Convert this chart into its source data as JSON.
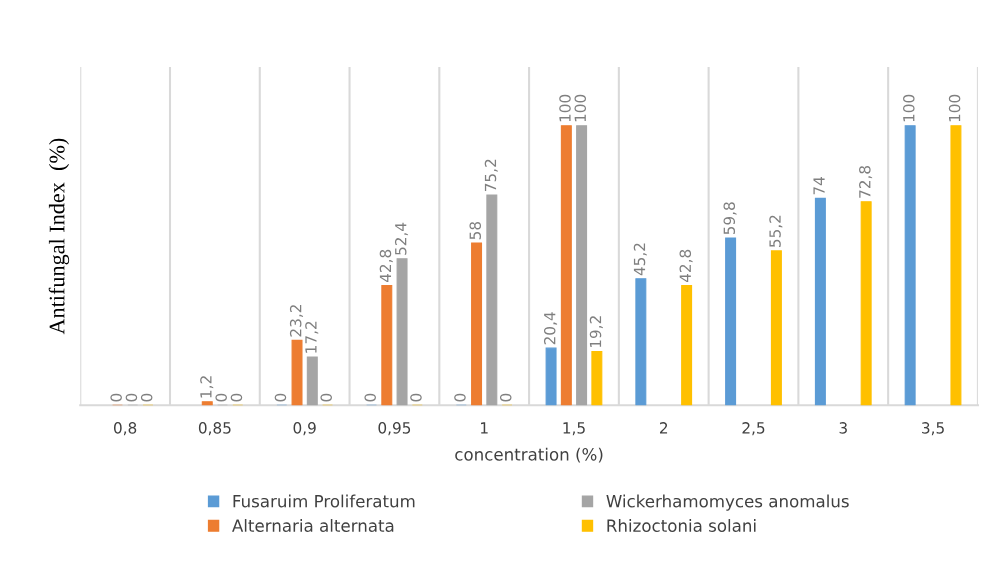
{
  "chart_data": {
    "type": "bar",
    "xlabel": "concentration (%)",
    "ylabel": "Antifungal Index  (%)",
    "categories": [
      "0,8",
      "0,85",
      "0,9",
      "0,95",
      "1",
      "1,5",
      "2",
      "2,5",
      "3",
      "3,5"
    ],
    "series": [
      {
        "name": "Fusaruim Proliferatum",
        "color": "#5b9bd5",
        "values": [
          null,
          null,
          0,
          0,
          0,
          20.4,
          45.2,
          59.8,
          74,
          100
        ],
        "value_labels": [
          null,
          null,
          "0",
          "0",
          "0",
          "20,4",
          "45,2",
          "59,8",
          "74",
          "100"
        ]
      },
      {
        "name": "Alternaria alternata",
        "color": "#ed7d31",
        "values": [
          0,
          1.2,
          23.2,
          42.8,
          58,
          100,
          null,
          null,
          null,
          null
        ],
        "value_labels": [
          "0",
          "1,2",
          "23,2",
          "42,8",
          "58",
          "100",
          null,
          null,
          null,
          null
        ]
      },
      {
        "name": "Wickerhamomyces anomalus",
        "color": "#a5a5a5",
        "values": [
          0,
          0,
          17.2,
          52.4,
          75.2,
          100,
          null,
          null,
          null,
          null
        ],
        "value_labels": [
          "0",
          "0",
          "17,2",
          "52,4",
          "75,2",
          "100",
          null,
          null,
          null,
          null
        ]
      },
      {
        "name": "Rhizoctonia solani",
        "color": "#ffc000",
        "values": [
          0,
          0,
          0,
          0,
          0,
          19.2,
          42.8,
          55.2,
          72.8,
          100
        ],
        "value_labels": [
          "0",
          "0",
          "0",
          "0",
          "0",
          "19,2",
          "42,8",
          "55,2",
          "72,8",
          "100"
        ]
      }
    ],
    "grid": "x",
    "legend": "bottom",
    "tick_labels": "x"
  }
}
